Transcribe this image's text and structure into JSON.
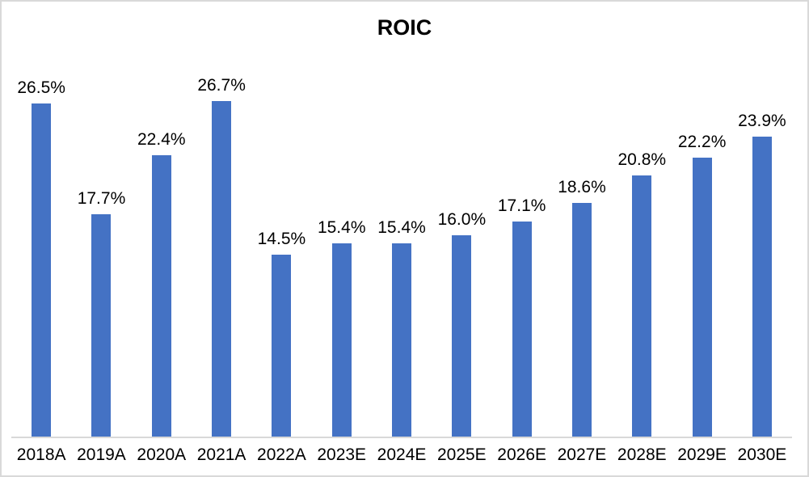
{
  "chart_data": {
    "type": "bar",
    "title": "ROIC",
    "categories": [
      "2018A",
      "2019A",
      "2020A",
      "2021A",
      "2022A",
      "2023E",
      "2024E",
      "2025E",
      "2026E",
      "2027E",
      "2028E",
      "2029E",
      "2030E"
    ],
    "values": [
      26.5,
      17.7,
      22.4,
      26.7,
      14.5,
      15.4,
      15.4,
      16.0,
      17.1,
      18.6,
      20.8,
      22.2,
      23.9
    ],
    "labels": [
      "26.5%",
      "17.7%",
      "22.4%",
      "26.7%",
      "14.5%",
      "15.4%",
      "15.4%",
      "16.0%",
      "17.1%",
      "18.6%",
      "20.8%",
      "22.2%",
      "23.9%"
    ],
    "xlabel": "",
    "ylabel": "",
    "ylim": [
      0,
      30
    ],
    "grid": false,
    "legend": "none",
    "bar_color": "#4472C4",
    "axis_line_color": "#D9D9D9",
    "border_color": "#D9D9D9",
    "title_color": "#000000",
    "label_color": "#000000",
    "background": "#FFFFFF"
  }
}
